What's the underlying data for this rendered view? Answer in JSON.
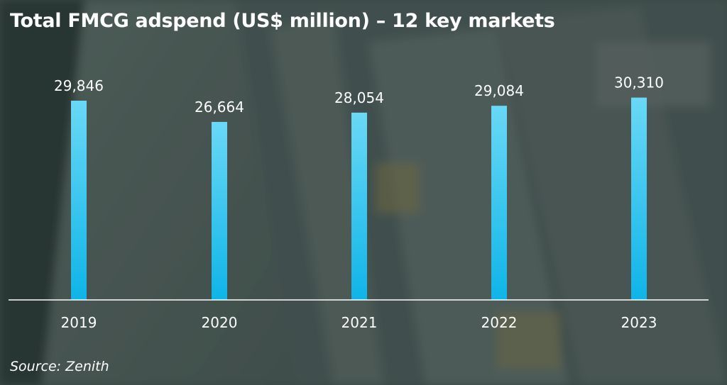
{
  "chart_data": {
    "type": "bar",
    "title": "Total FMCG adspend (US$ million) – 12 key markets",
    "categories": [
      "2019",
      "2020",
      "2021",
      "2022",
      "2023"
    ],
    "values": [
      29846,
      26664,
      28054,
      29084,
      30310
    ],
    "value_labels": [
      "29,846",
      "26,664",
      "28,054",
      "29,084",
      "30,310"
    ],
    "xlabel": "",
    "ylabel": "",
    "grid": false,
    "legend": "none",
    "bar_color_top": "#6ad8f6",
    "bar_color_bottom": "#0fb4e8"
  },
  "source": "Source: Zenith"
}
